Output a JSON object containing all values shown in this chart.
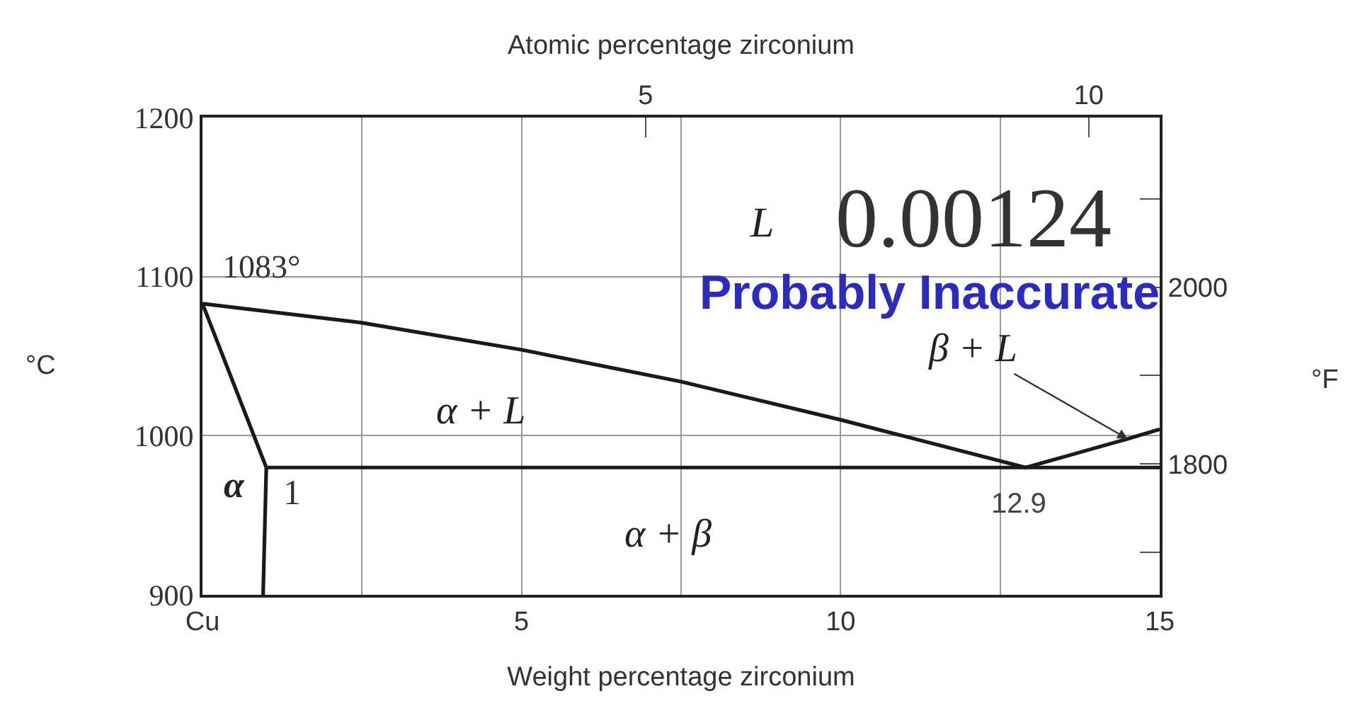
{
  "chart_data": {
    "type": "line",
    "x2label": "Atomic percentage zirconium",
    "xlabel": "Weight percentage zirconium",
    "ylabel": "°C",
    "y2label": "°F",
    "xlim": [
      0,
      15
    ],
    "xticks": [
      {
        "value": 0,
        "label": "Cu"
      },
      {
        "value": 2.5,
        "label": null
      },
      5,
      {
        "value": 7.5,
        "label": null
      },
      10,
      {
        "value": 12.5,
        "label": null
      },
      15
    ],
    "x2lim": [
      0,
      10.8
    ],
    "x2ticks": [
      5,
      10
    ],
    "ylim": [
      900,
      1200
    ],
    "yticks": [
      900,
      1000,
      1100,
      1200
    ],
    "y2lim": [
      1652,
      2192
    ],
    "y2ticks": [
      {
        "value": 1700,
        "label": null
      },
      1800,
      {
        "value": 1900,
        "label": null
      },
      2000,
      {
        "value": 2100,
        "label": null
      }
    ],
    "series": [
      {
        "color": "#1a1a1a",
        "x": [
          0,
          2.5,
          5,
          7.5,
          10,
          12.9,
          14.5,
          15
        ],
        "values": [
          1083,
          1071,
          1054,
          1034,
          1010,
          980,
          998,
          1004
        ]
      },
      {
        "color": "#1a1a1a",
        "x": [
          0,
          1,
          0.95
        ],
        "values": [
          1083,
          980,
          900
        ]
      },
      {
        "color": "#1a1a1a",
        "x": [
          1,
          15
        ],
        "values": [
          980,
          980
        ]
      }
    ],
    "annotations": [
      {
        "text": "1083°",
        "x": 0,
        "y": 1083
      },
      {
        "text": "1",
        "x": 1,
        "y": 980
      },
      {
        "text": "12.9",
        "x": 12.9,
        "y": 980
      },
      {
        "text": "β + L",
        "x": 14.5,
        "y": 998
      },
      "L",
      "0.00124",
      "Probably Inaccurate",
      "α + L",
      "α",
      "α + β"
    ],
    "grid": true,
    "marker": "none",
    "line_style": "solid"
  }
}
